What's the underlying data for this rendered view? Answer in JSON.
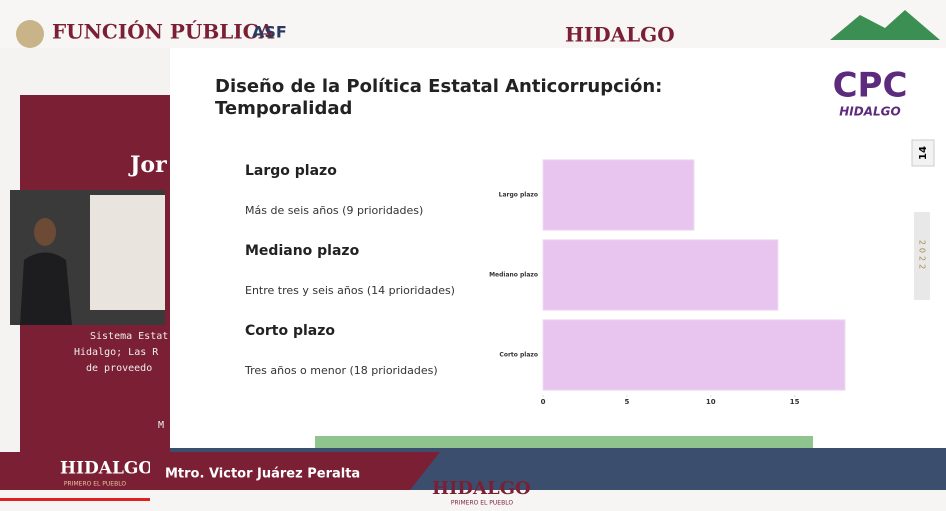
{
  "header": {
    "logos": [
      "FUNCIÓN PÚBLICA",
      "ASF",
      "HIDALGO"
    ]
  },
  "slide": {
    "title": [
      "Diseño de la Política Estatal Anticorrupción:",
      "Temporalidad"
    ],
    "items": [
      {
        "heading": "Largo plazo",
        "detail": "Más de seis años (9 prioridades)"
      },
      {
        "heading": "Mediano plazo",
        "detail": "Entre tres y seis años (14 prioridades)"
      },
      {
        "heading": "Corto plazo",
        "detail": "Tres años o menor (18 prioridades)"
      }
    ],
    "logo": {
      "name": "CPC",
      "place": "HIDALGO"
    },
    "sidebar": {
      "page": "14",
      "year": "2022"
    }
  },
  "chart_data": {
    "type": "bar",
    "orientation": "horizontal",
    "categories": [
      "Largo plazo",
      "Mediano plazo",
      "Corto plazo"
    ],
    "values": [
      9,
      14,
      18
    ],
    "color": "#e8c5ef",
    "xlim": [
      0,
      18
    ],
    "xticks": [
      0,
      5,
      10,
      15
    ]
  },
  "background_slide": {
    "lines": [
      "Jor",
      "Sistema Estat",
      "Hidalgo; Las R",
      "de proveedo",
      "M"
    ]
  },
  "lower_third": {
    "brand": "HIDALGO",
    "motto": "PRIMERO EL PUEBLO",
    "speaker": "Mtro. Victor Juárez Peralta"
  },
  "footer": {
    "brand": "HIDALGO",
    "motto": "PRIMERO EL PUEBLO"
  }
}
